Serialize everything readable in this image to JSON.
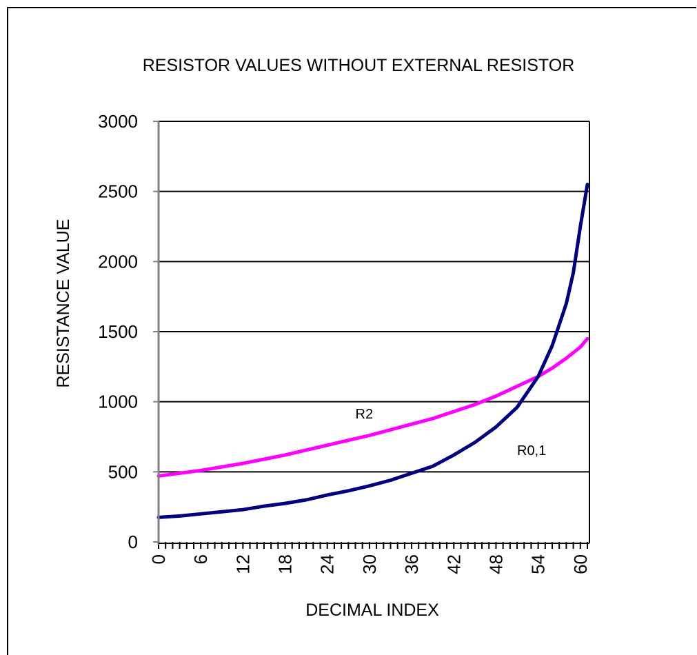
{
  "chart_data": {
    "type": "line",
    "title": "RESISTOR VALUES WITHOUT EXTERNAL RESISTOR",
    "xlabel": "DECIMAL INDEX",
    "ylabel": "RESISTANCE VALUE",
    "xlim": [
      0,
      61
    ],
    "ylim": [
      0,
      3000
    ],
    "x_ticks": [
      "0",
      "6",
      "12",
      "18",
      "24",
      "30",
      "36",
      "42",
      "48",
      "54",
      "60"
    ],
    "y_ticks": [
      "0",
      "500",
      "1000",
      "1500",
      "2000",
      "2500",
      "3000"
    ],
    "grid": "horizontal",
    "legend": "none",
    "x": [
      0,
      3,
      6,
      9,
      12,
      15,
      18,
      21,
      24,
      27,
      30,
      33,
      36,
      39,
      42,
      45,
      48,
      51,
      54,
      56,
      58,
      59,
      60,
      61
    ],
    "series": [
      {
        "name": "R2",
        "color": "#ff00ff",
        "values": [
          470,
          490,
          510,
          535,
          560,
          590,
          620,
          655,
          690,
          725,
          760,
          800,
          840,
          880,
          930,
          980,
          1040,
          1110,
          1180,
          1240,
          1310,
          1350,
          1390,
          1450
        ]
      },
      {
        "name": "R0,1",
        "color": "#000080",
        "values": [
          175,
          185,
          200,
          215,
          230,
          255,
          275,
          300,
          335,
          365,
          400,
          440,
          490,
          540,
          620,
          710,
          820,
          960,
          1180,
          1400,
          1700,
          1920,
          2250,
          2550
        ]
      }
    ],
    "annotations": [
      {
        "text": "R2",
        "x": 28,
        "y": 880
      },
      {
        "text": "R0,1",
        "x": 51,
        "y": 620
      }
    ]
  }
}
